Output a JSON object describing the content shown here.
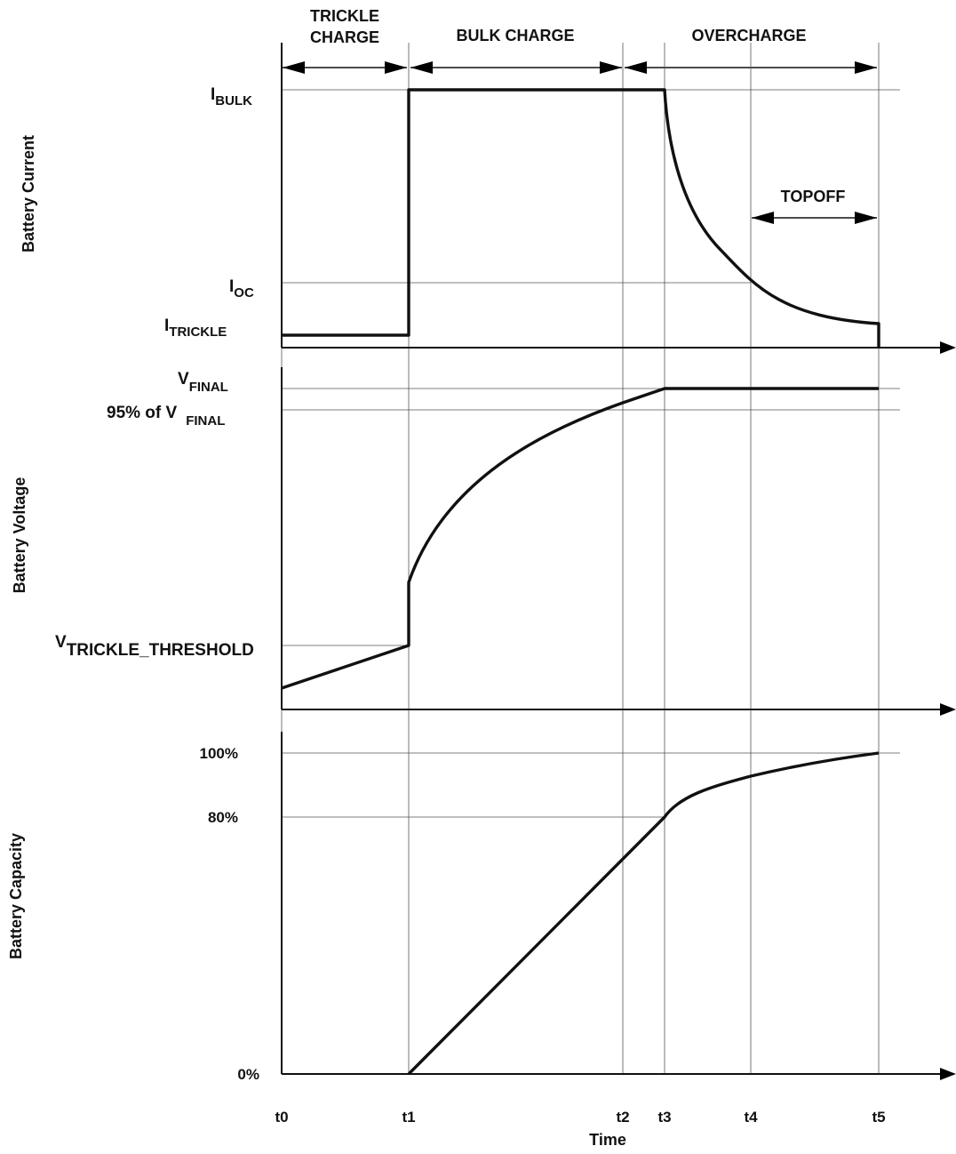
{
  "phases": {
    "trickle_line1": "TRICKLE",
    "trickle_line2": "CHARGE",
    "bulk": "BULK CHARGE",
    "overcharge": "OVERCHARGE",
    "topoff": "TOPOFF"
  },
  "panels": {
    "current": {
      "title": "Battery Current",
      "labels": {
        "bulk_main": "I",
        "bulk_sub": "BULK",
        "oc_main": "I",
        "oc_sub": "OC",
        "trickle_main": "I",
        "trickle_sub": "TRICKLE"
      }
    },
    "voltage": {
      "title": "Battery Voltage",
      "labels": {
        "final_main": "V",
        "final_sub": "FINAL",
        "pct_main": "95% of V",
        "pct_sub": "FINAL",
        "thr_main": "V",
        "thr_sub": "TRICKLE_THRESHOLD"
      }
    },
    "capacity": {
      "title": "Battery Capacity",
      "labels": {
        "p100": "100%",
        "p80": "80%",
        "p0": "0%"
      }
    }
  },
  "x_axis": {
    "title": "Time",
    "ticks": [
      "t0",
      "t1",
      "t2",
      "t3",
      "t4",
      "t5"
    ]
  },
  "chart_data": [
    {
      "type": "line",
      "ylabel": "Battery Current",
      "xlabel": "Time",
      "x": [
        "t0",
        "t1",
        "t1",
        "t3",
        "t4",
        "t5",
        "t5"
      ],
      "y": [
        "I_TRICKLE",
        "I_TRICKLE",
        "I_BULK",
        "I_BULK",
        "I_OC",
        "below I_OC",
        0
      ],
      "levels": {
        "I_BULK": 1.0,
        "I_OC": 0.25,
        "I_TRICKLE": 0.05
      },
      "series": [
        {
          "values": [
            0.05,
            0.05,
            1.0,
            1.0,
            0.25,
            0.1,
            0
          ]
        }
      ]
    },
    {
      "type": "line",
      "ylabel": "Battery Voltage",
      "xlabel": "Time",
      "x": [
        "t0",
        "t1",
        "t1",
        "t2",
        "t3",
        "t5"
      ],
      "levels": {
        "V_FINAL": 1.0,
        "95% of V_FINAL": 0.95,
        "V_TRICKLE_THRESHOLD": 0.2
      },
      "series": [
        {
          "values": [
            0.07,
            0.2,
            0.38,
            0.95,
            1.0,
            1.0
          ]
        }
      ]
    },
    {
      "type": "line",
      "ylabel": "Battery Capacity",
      "xlabel": "Time",
      "x": [
        "t1",
        "t3",
        "t4",
        "t5"
      ],
      "series": [
        {
          "values": [
            0,
            80,
            93,
            100
          ]
        }
      ],
      "yticks": [
        "0%",
        "80%",
        "100%"
      ],
      "ylim": [
        0,
        100
      ]
    }
  ]
}
